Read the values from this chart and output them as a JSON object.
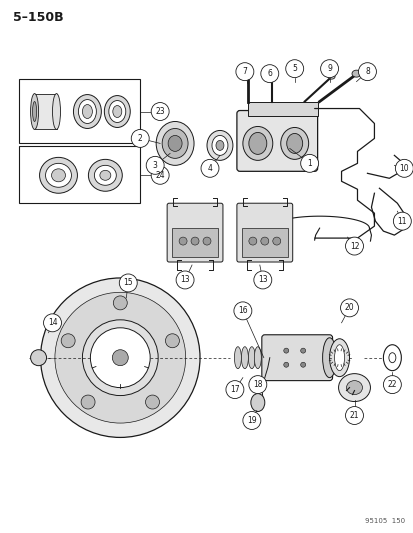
{
  "title": "5–150B",
  "footer": "95105  150",
  "bg_color": "#ffffff",
  "fig_width": 4.14,
  "fig_height": 5.33,
  "dpi": 100,
  "dark": "#1a1a1a",
  "gray": "#555555",
  "lw": 0.7
}
